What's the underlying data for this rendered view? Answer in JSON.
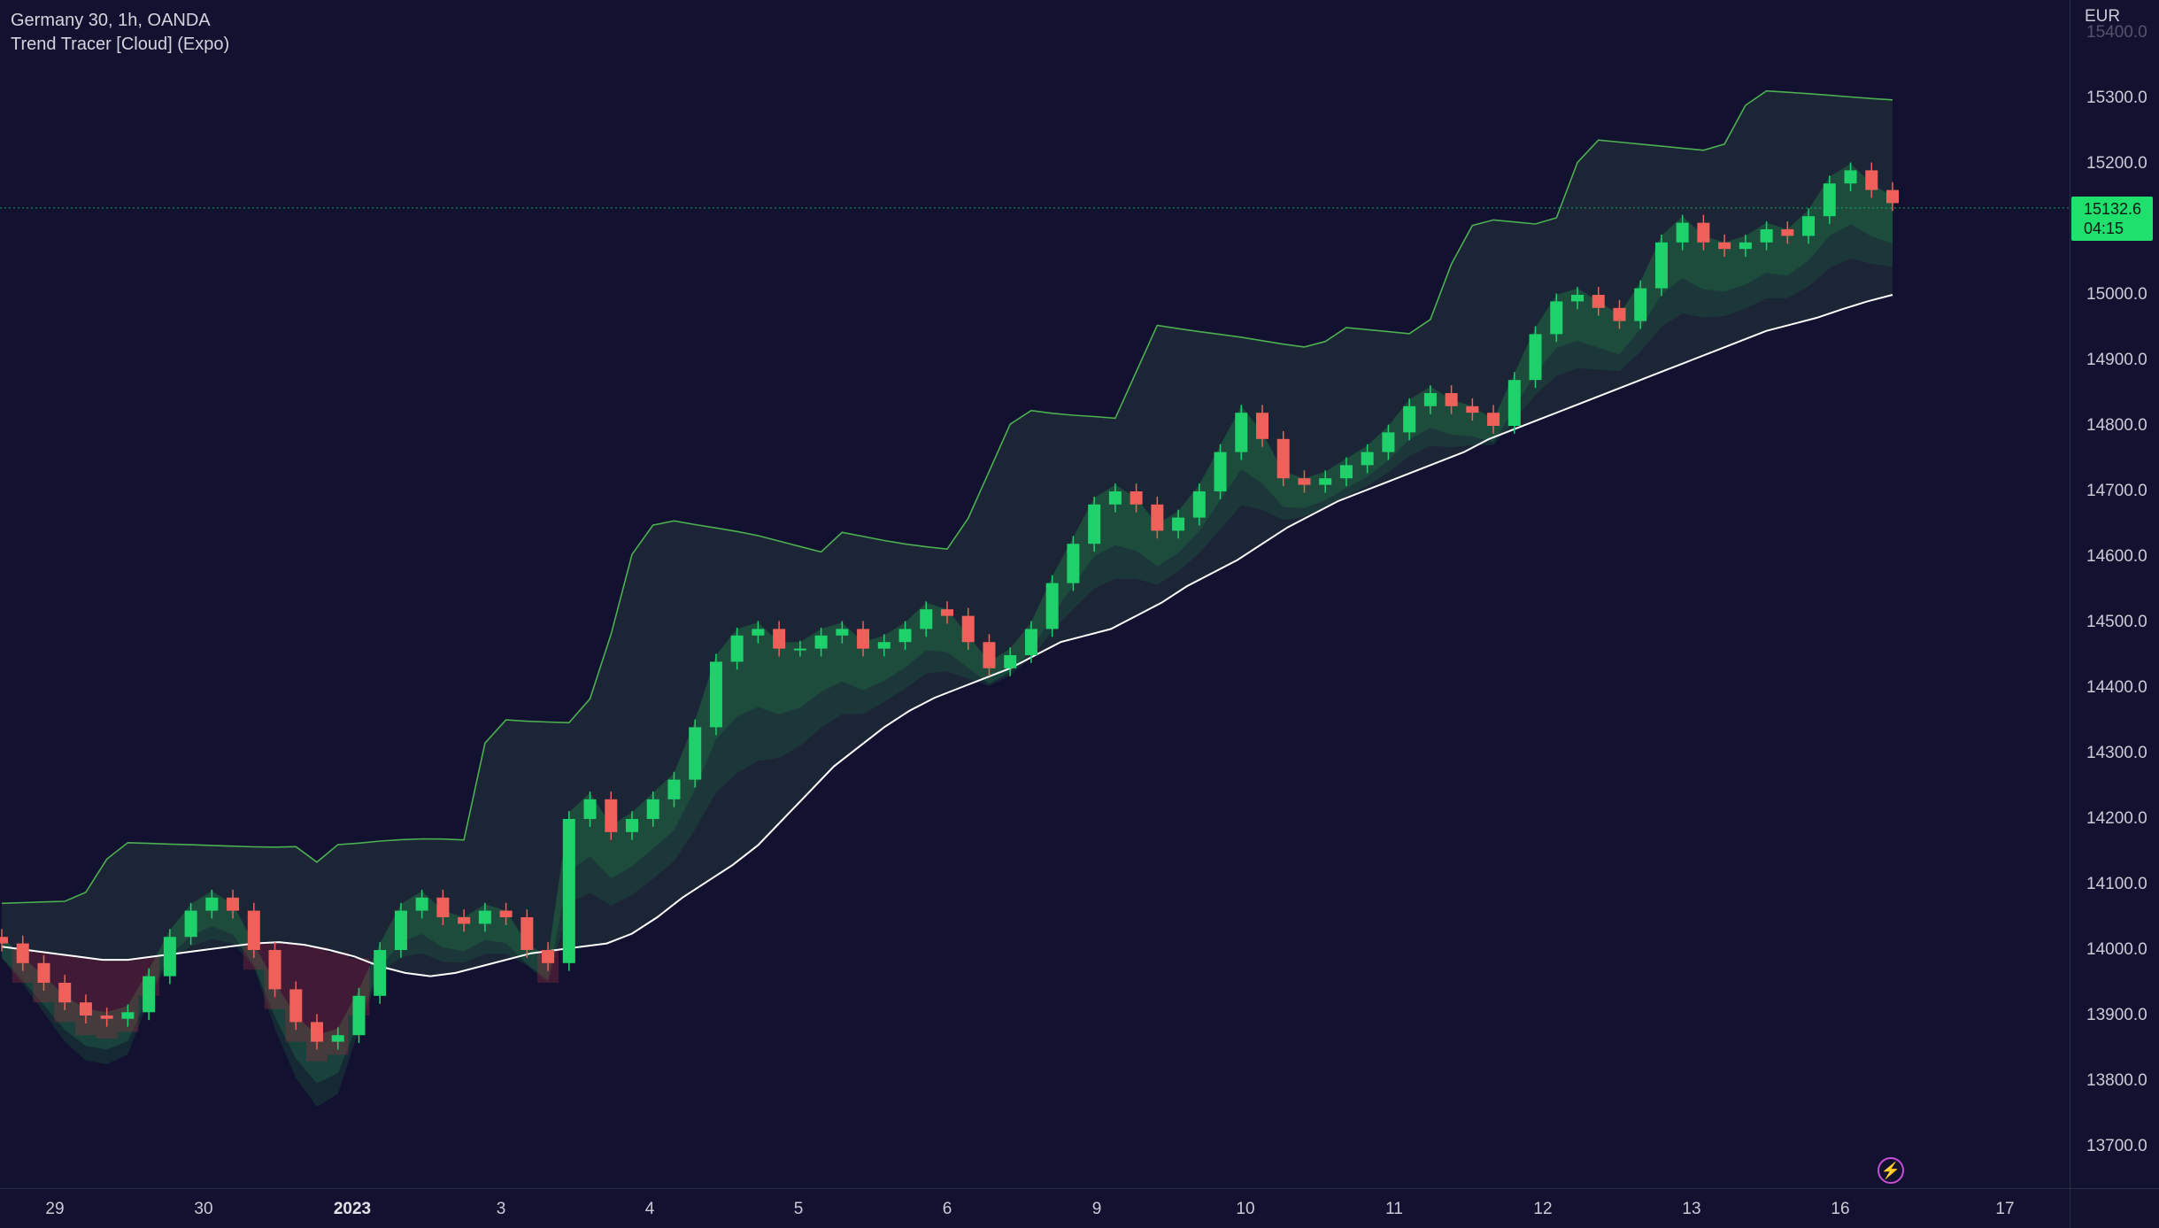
{
  "legend": {
    "symbol": "Germany 30, 1h, OANDA",
    "indicator": "Trend Tracer [Cloud] (Expo)"
  },
  "price_axis": {
    "currency": "EUR",
    "ticks": [
      "15400.0",
      "15300.0",
      "15200.0",
      "15100.0",
      "15000.0",
      "14900.0",
      "14800.0",
      "14700.0",
      "14600.0",
      "14500.0",
      "14400.0",
      "14300.0",
      "14200.0",
      "14100.0",
      "14000.0",
      "13900.0",
      "13800.0",
      "13700.0"
    ],
    "current_price": "15132.6",
    "countdown": "04:15"
  },
  "time_axis": {
    "ticks": [
      {
        "label": "29",
        "major": false
      },
      {
        "label": "30",
        "major": false
      },
      {
        "label": "2023",
        "major": true
      },
      {
        "label": "3",
        "major": false
      },
      {
        "label": "4",
        "major": false
      },
      {
        "label": "5",
        "major": false
      },
      {
        "label": "6",
        "major": false
      },
      {
        "label": "9",
        "major": false
      },
      {
        "label": "10",
        "major": false
      },
      {
        "label": "11",
        "major": false
      },
      {
        "label": "12",
        "major": false
      },
      {
        "label": "13",
        "major": false
      },
      {
        "label": "16",
        "major": false
      },
      {
        "label": "17",
        "major": false
      }
    ]
  },
  "colors": {
    "background": "#121230",
    "bull": "#1fd16a",
    "bear": "#f0605a",
    "baseline": "#ffffff",
    "badge": "#1fe06d",
    "alert_icon": "#c44fd6"
  },
  "icons": {
    "alert": "lightning-bolt-icon"
  },
  "chart_data": {
    "type": "line",
    "series": [
      {
        "values": [
          14010,
          13980,
          13950,
          13920,
          13900,
          13895,
          13905,
          13960,
          14020,
          14060,
          14080,
          14060,
          14000,
          13940,
          13890,
          13860,
          13870,
          13930,
          14000,
          14060,
          14080,
          14050,
          14040,
          14060,
          14050,
          14000,
          13980,
          14200,
          14230,
          14180,
          14200,
          14230,
          14260,
          14340,
          14440,
          14480,
          14490,
          14460,
          14460,
          14480,
          14490,
          14460,
          14470,
          14490,
          14520,
          14510,
          14470,
          14430,
          14450,
          14490,
          14560,
          14620,
          14680,
          14700,
          14680,
          14640,
          14660,
          14700,
          14760,
          14820,
          14780,
          14720,
          14710,
          14720,
          14740,
          14760,
          14790,
          14830,
          14850,
          14830,
          14820,
          14800,
          14870,
          14940,
          14990,
          15000,
          14980,
          14960,
          15010,
          15080,
          15110,
          15080,
          15070,
          15080,
          15100,
          15090,
          15120,
          15170,
          15190,
          15160,
          15140
        ]
      },
      {
        "values": [
          14005,
          14000,
          13995,
          13990,
          13985,
          13985,
          13990,
          13995,
          14000,
          14005,
          14010,
          14012,
          14008,
          14000,
          13990,
          13975,
          13965,
          13960,
          13965,
          13975,
          13985,
          13995,
          14000,
          14005,
          14010,
          14025,
          14050,
          14080,
          14105,
          14130,
          14160,
          14200,
          14240,
          14280,
          14310,
          14340,
          14365,
          14385,
          14400,
          14415,
          14430,
          14450,
          14470,
          14480,
          14490,
          14510,
          14530,
          14555,
          14575,
          14595,
          14620,
          14645,
          14665,
          14685,
          14700,
          14715,
          14730,
          14745,
          14760,
          14780,
          14795,
          14810,
          14825,
          14840,
          14855,
          14870,
          14885,
          14900,
          14915,
          14930,
          14945,
          14955,
          14965,
          14978,
          14990,
          15000
        ]
      }
    ]
  }
}
